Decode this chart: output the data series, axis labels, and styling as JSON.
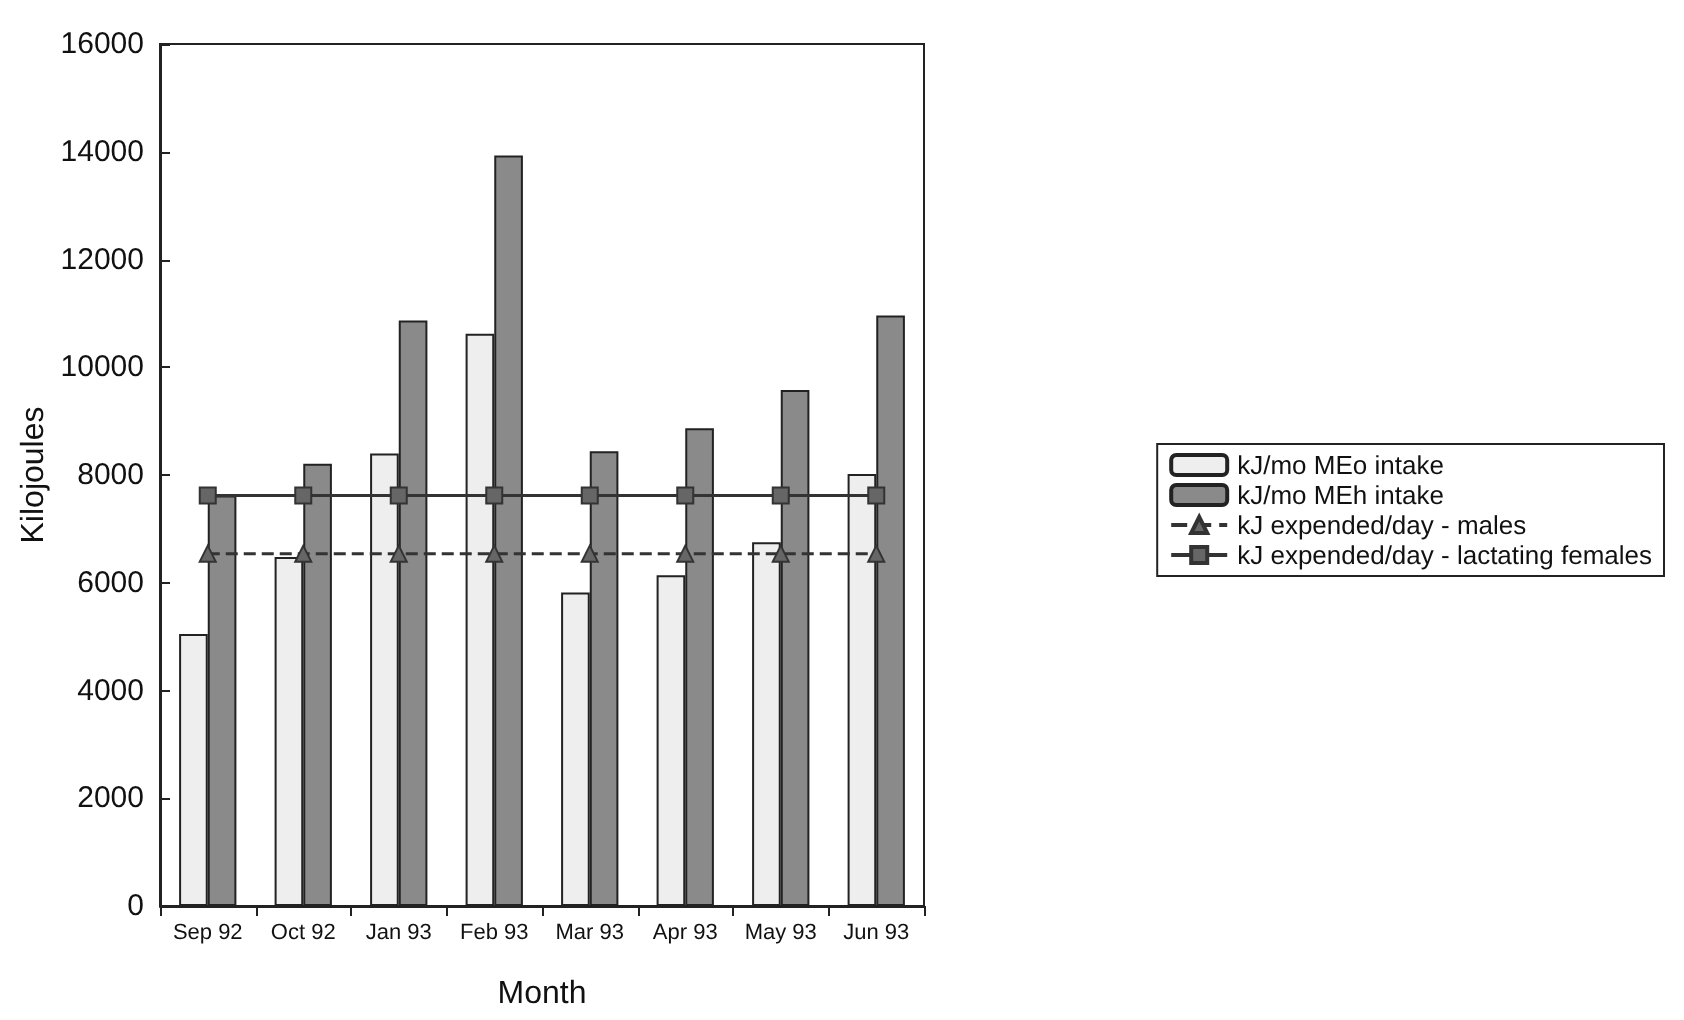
{
  "chart_data": {
    "type": "bar",
    "xlabel": "Month",
    "ylabel": "Kilojoules",
    "categories": [
      "Sep 92",
      "Oct 92",
      "Jan 93",
      "Feb 93",
      "Mar 93",
      "Apr 93",
      "May 93",
      "Jun 93"
    ],
    "series": [
      {
        "name": "kJ/mo MEo intake",
        "color": "#eeeeee",
        "values": [
          5050,
          6480,
          8400,
          10620,
          5820,
          6140,
          6750,
          8020
        ]
      },
      {
        "name": "kJ/mo MEh intake",
        "color": "#8a8a8a",
        "values": [
          7620,
          8210,
          10870,
          13930,
          8440,
          8870,
          9580,
          10960
        ]
      },
      {
        "name": "kJ expended/day - males",
        "type": "line",
        "color": "#333333",
        "marker": "triangle",
        "line_style": "dashed",
        "values": [
          6540,
          6540,
          6540,
          6540,
          6540,
          6540,
          6540,
          6540
        ]
      },
      {
        "name": "kJ expended/day - lactating females",
        "type": "line",
        "color": "#333333",
        "marker": "square",
        "line_style": "solid",
        "values": [
          7620,
          7620,
          7620,
          7620,
          7620,
          7620,
          7620,
          7620
        ]
      }
    ],
    "ylim": [
      0,
      16000
    ],
    "yticks": [
      0,
      2000,
      4000,
      6000,
      8000,
      10000,
      12000,
      14000,
      16000
    ],
    "grid": false,
    "legend": "right"
  }
}
